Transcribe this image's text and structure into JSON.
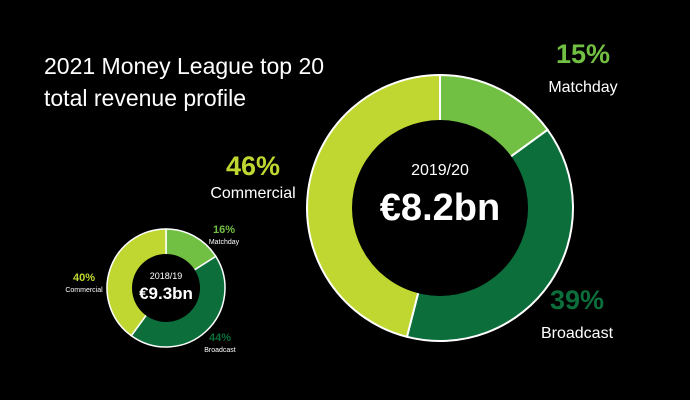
{
  "title_lines": [
    "2021 Money League top 20",
    "total revenue profile"
  ],
  "colors": {
    "matchday": "#72c043",
    "broadcast": "#0b6e3b",
    "commercial": "#bfd730",
    "separator": "#ffffff",
    "background": "#000000",
    "center_fill": "#000000"
  },
  "chart_data": [
    {
      "type": "pie",
      "center_label": "2019/20",
      "total": "€8.2bn",
      "slices": [
        {
          "name": "Matchday",
          "value": 15,
          "pct_label": "15%"
        },
        {
          "name": "Broadcast",
          "value": 39,
          "pct_label": "39%"
        },
        {
          "name": "Commercial",
          "value": 46,
          "pct_label": "46%"
        }
      ]
    },
    {
      "type": "pie",
      "center_label": "2018/19",
      "total": "€9.3bn",
      "slices": [
        {
          "name": "Matchday",
          "value": 16,
          "pct_label": "16%"
        },
        {
          "name": "Broadcast",
          "value": 44,
          "pct_label": "44%"
        },
        {
          "name": "Commercial",
          "value": 40,
          "pct_label": "40%"
        }
      ]
    }
  ]
}
